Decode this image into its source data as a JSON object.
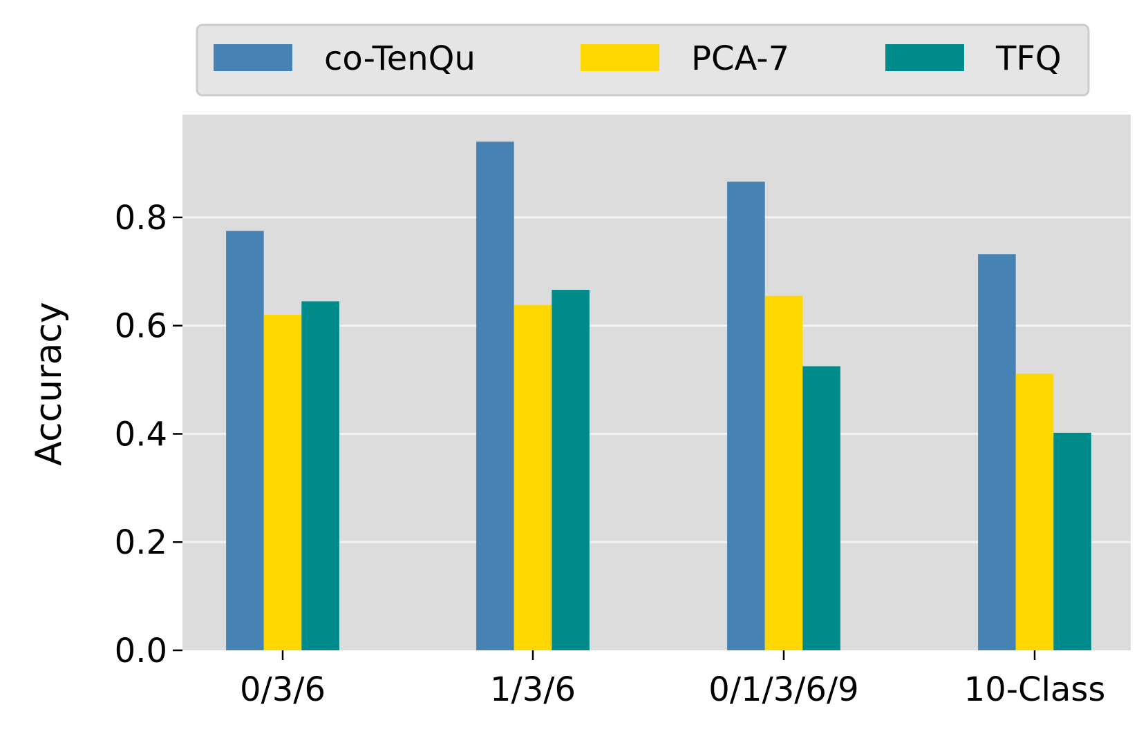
{
  "chart_data": {
    "type": "bar",
    "title": "",
    "xlabel": "",
    "ylabel": "Accuracy",
    "categories": [
      "0/3/6",
      "1/3/6",
      "0/1/3/6/9",
      "10-Class"
    ],
    "series": [
      {
        "name": "co-TenQu",
        "color": "#4682B4",
        "values": [
          0.775,
          0.94,
          0.866,
          0.732
        ]
      },
      {
        "name": "PCA-7",
        "color": "#FFD700",
        "values": [
          0.62,
          0.638,
          0.655,
          0.511
        ]
      },
      {
        "name": "TFQ",
        "color": "#008B8B",
        "values": [
          0.645,
          0.666,
          0.525,
          0.402
        ]
      }
    ],
    "ylim": [
      0,
      0.99
    ],
    "yticks": [
      0.0,
      0.2,
      0.4,
      0.6,
      0.8
    ],
    "ytick_labels": [
      "0.0",
      "0.2",
      "0.4",
      "0.6",
      "0.8"
    ],
    "grid": true,
    "legend_position": "top",
    "plot_background": "#DCDCDC",
    "legend_background": "#E5E5E5"
  }
}
